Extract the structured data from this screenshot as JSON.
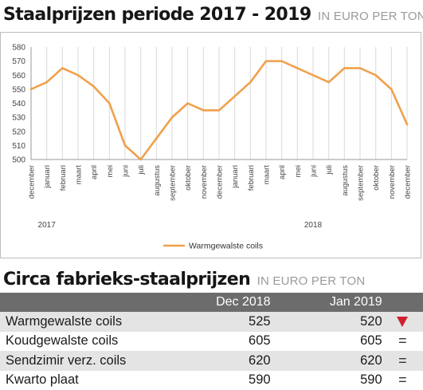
{
  "chart_title": "Staalprijzen periode 2017 - 2019",
  "chart_unit": "IN EURO PER TON",
  "chart_data": {
    "type": "line",
    "categories": [
      "december",
      "januari",
      "februari",
      "maart",
      "april",
      "mei",
      "juni",
      "juli",
      "augustus",
      "september",
      "oktober",
      "november",
      "december",
      "januari",
      "februari",
      "maart",
      "april",
      "mei",
      "juni",
      "juli",
      "augustus",
      "september",
      "oktober",
      "november",
      "december"
    ],
    "year_labels": [
      {
        "label": "2017",
        "index": 1
      },
      {
        "label": "2018",
        "index": 18
      }
    ],
    "series": [
      {
        "name": "Warmgewalste coils",
        "color": "#f0a04b",
        "values": [
          550,
          555,
          565,
          560,
          552,
          540,
          510,
          500,
          515,
          530,
          540,
          535,
          535,
          545,
          555,
          570,
          570,
          565,
          560,
          555,
          565,
          565,
          560,
          550,
          525
        ]
      }
    ],
    "ylim": [
      500,
      580
    ],
    "yticks": [
      500,
      510,
      520,
      530,
      540,
      550,
      560,
      570,
      580
    ],
    "grid": "vertical",
    "legend": "bottom-center"
  },
  "table_title": "Circa fabrieks-staalprijzen",
  "table_unit": "IN EURO PER TON",
  "table": {
    "headers": [
      "",
      "Dec 2018",
      "Jan 2019",
      ""
    ],
    "rows": [
      {
        "name": "Warmgewalste coils",
        "v1": "525",
        "v2": "520",
        "trend": "down"
      },
      {
        "name": "Koudgewalste coils",
        "v1": "605",
        "v2": "605",
        "trend": "equal"
      },
      {
        "name": "Sendzimir verz. coils",
        "v1": "620",
        "v2": "620",
        "trend": "equal"
      },
      {
        "name": "Kwarto plaat",
        "v1": "590",
        "v2": "590",
        "trend": "equal"
      }
    ],
    "equal_symbol": "="
  }
}
